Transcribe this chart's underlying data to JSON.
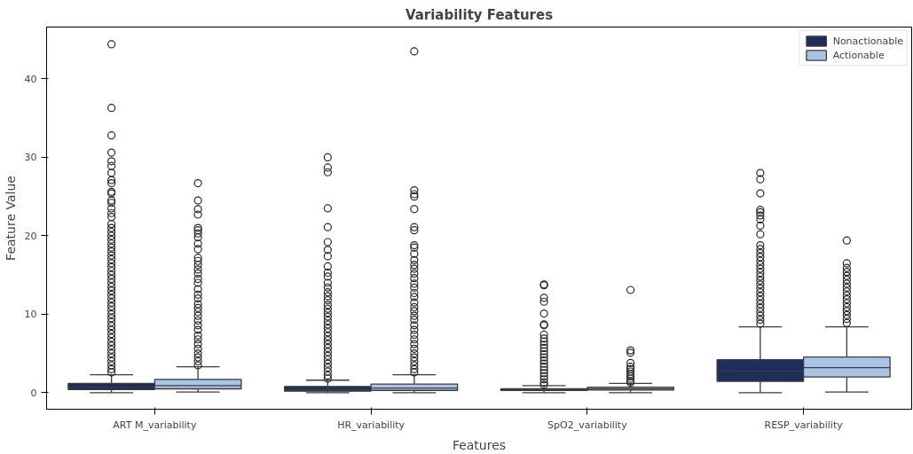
{
  "chart_data": {
    "type": "box",
    "title": "Variability Features",
    "xlabel": "Features",
    "ylabel": "Feature Value",
    "categories": [
      "ART M_variability",
      "HR_variability",
      "SpO2_variability",
      "RESP_variability"
    ],
    "ylim": [
      -2.1,
      46.6
    ],
    "yticks": [
      0,
      10,
      20,
      30,
      40
    ],
    "grid": false,
    "legend": "top right",
    "series": [
      {
        "name": "Nonactionable",
        "color": "#1f2d5c",
        "boxes": [
          {
            "low": 0,
            "q1": 0.4,
            "median": 0.7,
            "q3": 1.2,
            "high": 2.3,
            "outliers": [
              44.4,
              36.3,
              32.8,
              30.6,
              29.5,
              28.9,
              28.0,
              27.1,
              26.7,
              25.6,
              25.4,
              24.5,
              24.2,
              23.5,
              22.9,
              22.4,
              21.5,
              21.0,
              20.5,
              20.0,
              19.5,
              19.0,
              18.5,
              18.0,
              17.5,
              17.0,
              16.5,
              16.0,
              15.5,
              15.0,
              14.5,
              14.0,
              13.5,
              13.0,
              12.5,
              12.0,
              11.5,
              11.0,
              10.5,
              10.0,
              9.5,
              9.0,
              8.5,
              8.0,
              7.5,
              7.0,
              6.5,
              6.0,
              5.5,
              5.0,
              4.5,
              4.0,
              3.5,
              3.0,
              2.6
            ]
          },
          {
            "low": 0,
            "q1": 0.2,
            "median": 0.4,
            "q3": 0.8,
            "high": 1.6,
            "outliers": [
              30.0,
              28.7,
              28.1,
              23.5,
              21.1,
              19.2,
              18.2,
              17.4,
              16.1,
              15.3,
              14.8,
              14.0,
              13.4,
              12.8,
              12.3,
              11.8,
              11.2,
              10.7,
              10.2,
              9.7,
              9.2,
              8.7,
              8.2,
              7.7,
              7.2,
              6.7,
              6.2,
              5.7,
              5.2,
              4.7,
              4.2,
              3.7,
              3.2,
              2.7,
              2.2,
              1.8
            ]
          },
          {
            "low": 0,
            "q1": 0.3,
            "median": 0.4,
            "q3": 0.5,
            "high": 0.9,
            "outliers": [
              13.8,
              13.7,
              12.1,
              11.6,
              10.1,
              8.7,
              8.6,
              7.4,
              6.9,
              6.5,
              6.1,
              5.7,
              5.3,
              4.9,
              4.5,
              4.1,
              3.7,
              3.3,
              2.9,
              2.5,
              2.1,
              1.7,
              1.3,
              1.0
            ]
          },
          {
            "low": 0,
            "q1": 1.45,
            "median": 2.75,
            "q3": 4.2,
            "high": 8.4,
            "outliers": [
              28.0,
              27.2,
              25.4,
              23.3,
              23.0,
              22.6,
              22.1,
              21.3,
              20.2,
              18.8,
              18.3,
              17.8,
              17.3,
              16.8,
              16.3,
              15.8,
              15.3,
              14.8,
              14.3,
              13.8,
              13.3,
              12.8,
              12.3,
              11.8,
              11.3,
              10.8,
              10.3,
              9.8,
              9.3,
              8.8
            ]
          }
        ]
      },
      {
        "name": "Actionable",
        "color": "#aac4e6",
        "boxes": [
          {
            "low": 0.1,
            "q1": 0.5,
            "median": 0.9,
            "q3": 1.7,
            "high": 3.3,
            "outliers": [
              26.7,
              24.5,
              23.4,
              22.7,
              21.0,
              20.7,
              20.3,
              19.8,
              19.0,
              18.3,
              17.2,
              16.8,
              16.3,
              15.7,
              15.2,
              14.5,
              14.0,
              13.2,
              12.5,
              12.0,
              11.3,
              10.8,
              10.3,
              9.8,
              9.2,
              8.6,
              8.0,
              7.3,
              6.8,
              6.2,
              5.6,
              5.0,
              4.5,
              4.0,
              3.5
            ]
          },
          {
            "low": 0,
            "q1": 0.3,
            "median": 0.6,
            "q3": 1.1,
            "high": 2.3,
            "outliers": [
              43.5,
              25.8,
              25.3,
              25.0,
              23.4,
              21.1,
              20.7,
              18.8,
              18.5,
              17.7,
              16.9,
              16.3,
              15.8,
              15.2,
              14.6,
              13.9,
              13.4,
              12.7,
              12.2,
              11.5,
              10.9,
              10.4,
              9.8,
              9.3,
              8.6,
              8.0,
              7.4,
              6.8,
              6.2,
              5.6,
              5.0,
              4.5,
              4.0,
              3.5,
              3.0,
              2.6
            ]
          },
          {
            "low": 0,
            "q1": 0.35,
            "median": 0.5,
            "q3": 0.7,
            "high": 1.2,
            "outliers": [
              13.1,
              5.4,
              5.1,
              3.8,
              3.3,
              3.0,
              2.7,
              2.4,
              2.1,
              1.8,
              1.5,
              1.3
            ]
          },
          {
            "low": 0.1,
            "q1": 2.0,
            "median": 3.2,
            "q3": 4.55,
            "high": 8.4,
            "outliers": [
              19.4,
              16.5,
              15.9,
              15.4,
              14.9,
              14.4,
              13.9,
              13.4,
              12.9,
              12.4,
              11.9,
              11.4,
              10.9,
              10.4,
              9.9,
              9.4,
              8.9
            ]
          }
        ]
      }
    ]
  }
}
